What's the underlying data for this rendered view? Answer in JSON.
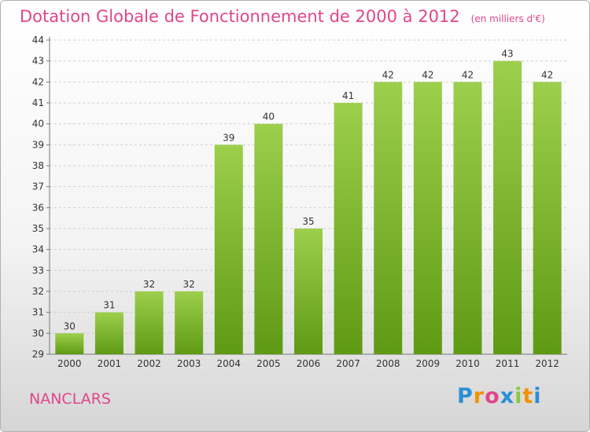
{
  "chart_data": {
    "type": "bar",
    "title": "Dotation Globale de Fonctionnement de 2000 à 2012",
    "subtitle": "(en milliers d'€)",
    "categories": [
      "2000",
      "2001",
      "2002",
      "2003",
      "2004",
      "2005",
      "2006",
      "2007",
      "2008",
      "2009",
      "2010",
      "2011",
      "2012"
    ],
    "values": [
      30,
      31,
      32,
      32,
      39,
      40,
      35,
      41,
      42,
      42,
      42,
      43,
      42
    ],
    "ylim": [
      29,
      44
    ],
    "yticks": [
      29,
      30,
      31,
      32,
      33,
      34,
      35,
      36,
      37,
      38,
      39,
      40,
      41,
      42,
      43,
      44
    ],
    "grid": true,
    "bar_colors": {
      "top": "#9ccf4c",
      "bottom": "#5f9a14"
    }
  },
  "footer": {
    "commune": "NANCLARS",
    "logo": "Proxiti"
  },
  "colors": {
    "accent": "#e0468a"
  }
}
